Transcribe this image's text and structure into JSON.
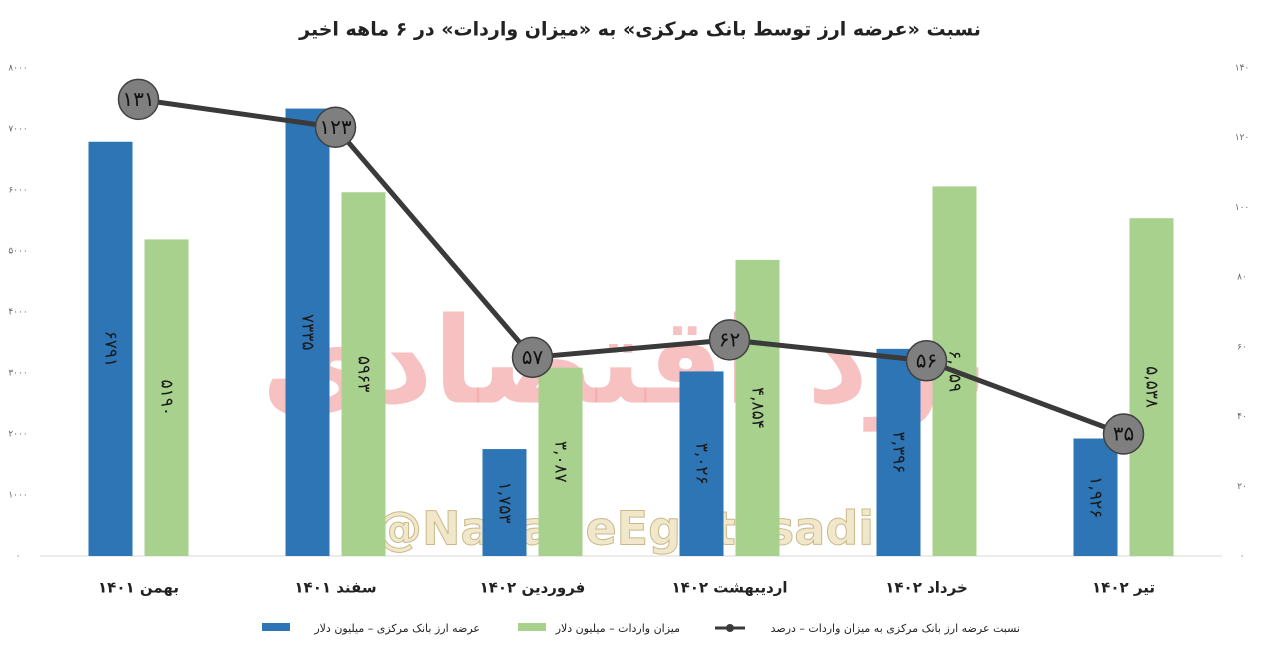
{
  "chart_data": {
    "type": "bar-line",
    "title": "نسبت «عرضه ارز توسط بانک مرکزی» به «میزان واردات» در ۶ ماهه اخیر",
    "watermarks": [
      "نود اقتصادی",
      "@NavadeEghtesadi"
    ],
    "categories": [
      "بهمن ۱۴۰۱",
      "سفند ۱۴۰۱",
      "فروردین ۱۴۰۲",
      "اردیبهشت ۱۴۰۲",
      "خرداد ۱۴۰۲",
      "تیر ۱۴۰۲"
    ],
    "series": [
      {
        "name": "عرضه ارز بانک مرکزی – میلیون دلار",
        "kind": "bar",
        "color": "#2e75b6",
        "values": [
          6791,
          7335,
          1753,
          3026,
          3396,
          1926
        ],
        "value_labels": [
          "۶۷۹۱",
          "۷۳۳۵",
          "۱,۷۵۳",
          "۳,۰۲۶",
          "۳,۳۹۶",
          "۱,۹۲۶"
        ]
      },
      {
        "name": "میزان واردات – میلیون دلار",
        "kind": "bar",
        "color": "#a9d18e",
        "values": [
          5190,
          5963,
          3087,
          4854,
          6059,
          5538
        ],
        "value_labels": [
          "۵۱۹۰",
          "۵۹۶۳",
          "۳,۰۸۷",
          "۴,۸۵۴",
          "۶,۰۵۹",
          "۵,۵۳۸"
        ]
      },
      {
        "name": "نسبت عرضه ارز بانک مرکزی به میزان واردات – درصد",
        "kind": "line",
        "axis": "y2",
        "color": "#3a3a3a",
        "values": [
          131,
          123,
          57,
          62,
          56,
          35
        ],
        "value_labels": [
          "۱۳۱",
          "۱۲۳",
          "۵۷",
          "۶۲",
          "۵۶",
          "۳۵"
        ]
      }
    ],
    "ylim": [
      0,
      8000
    ],
    "yticks": [
      {
        "value": 0,
        "label": "۰"
      },
      {
        "value": 1000,
        "label": "۱۰۰۰"
      },
      {
        "value": 2000,
        "label": "۲۰۰۰"
      },
      {
        "value": 3000,
        "label": "۳۰۰۰"
      },
      {
        "value": 4000,
        "label": "۴۰۰۰"
      },
      {
        "value": 5000,
        "label": "۵۰۰۰"
      },
      {
        "value": 6000,
        "label": "۶۰۰۰"
      },
      {
        "value": 7000,
        "label": "۷۰۰۰"
      },
      {
        "value": 8000,
        "label": "۸۰۰۰"
      }
    ],
    "y2lim": [
      0,
      140
    ],
    "y2ticks": [
      {
        "value": 0,
        "label": "۰"
      },
      {
        "value": 20,
        "label": "۲۰"
      },
      {
        "value": 40,
        "label": "۴۰"
      },
      {
        "value": 60,
        "label": "۶۰"
      },
      {
        "value": 80,
        "label": "۸۰"
      },
      {
        "value": 100,
        "label": "۱۰۰"
      },
      {
        "value": 120,
        "label": "۱۲۰"
      },
      {
        "value": 140,
        "label": "۱۴۰"
      }
    ],
    "grid": false
  }
}
